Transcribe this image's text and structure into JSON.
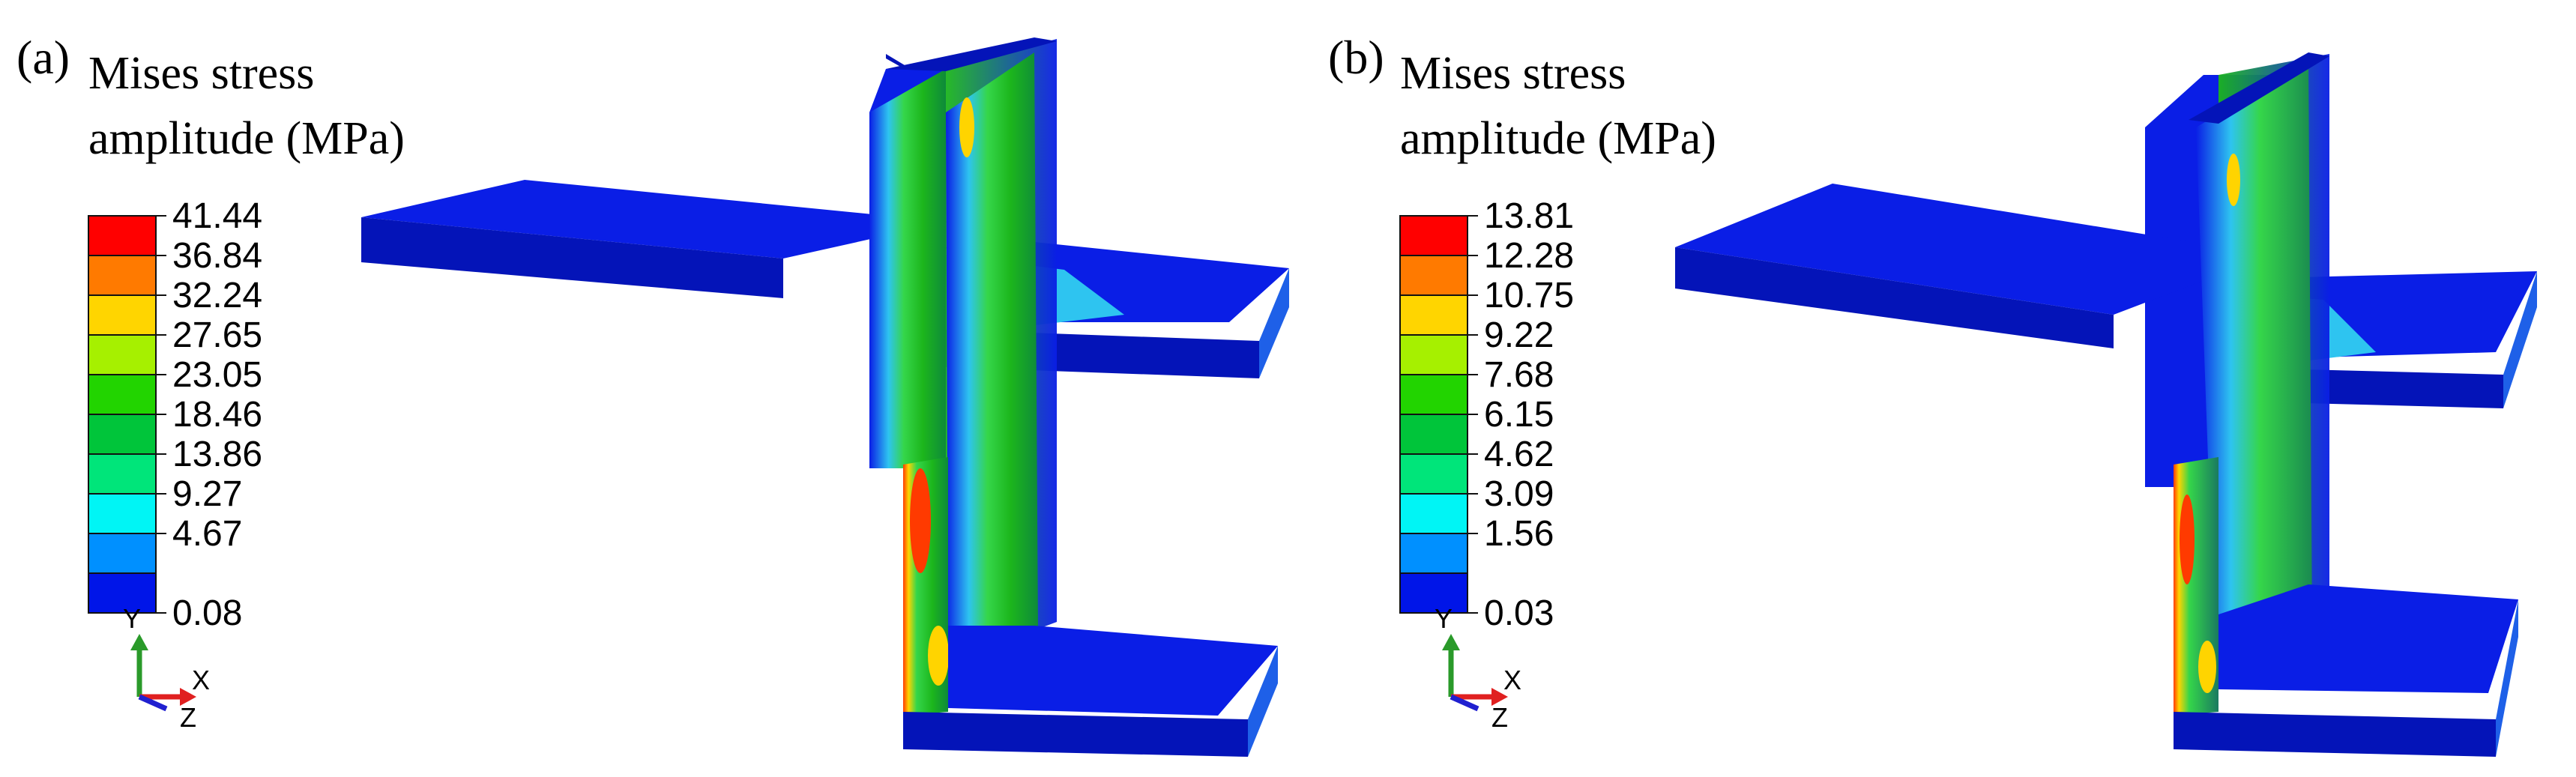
{
  "panels": [
    {
      "id": "a",
      "tag": "(a)",
      "title_line1": "Mises stress",
      "title_line2": "amplitude (MPa)",
      "ticks": [
        "41.44",
        "36.84",
        "32.24",
        "27.65",
        "23.05",
        "18.46",
        "13.86",
        "9.27",
        "4.67",
        "0.08"
      ]
    },
    {
      "id": "b",
      "tag": "(b)",
      "title_line1": "Mises stress",
      "title_line2": "amplitude (MPa)",
      "ticks": [
        "13.81",
        "12.28",
        "10.75",
        "9.22",
        "7.68",
        "6.15",
        "4.62",
        "3.09",
        "1.56",
        "0.03"
      ]
    }
  ],
  "colorbar_colors": [
    "#ff0000",
    "#ff7a00",
    "#ffd500",
    "#a6f000",
    "#22d400",
    "#00c53a",
    "#00e57a",
    "#00f5f5",
    "#0090ff",
    "#0015e8"
  ],
  "axis_triad": {
    "y": "Y",
    "x": "X",
    "z": "Z"
  },
  "colors": {
    "deep_blue": "#0a1ee6",
    "dark_blue": "#0414b8",
    "cyan": "#2ec4f0",
    "green": "#1cb61c",
    "light_green": "#35d64a",
    "yellow": "#ffd400",
    "red": "#ff3a00",
    "axis_green": "#2a9a2a",
    "axis_red": "#e02020",
    "axis_blue": "#2020d0"
  }
}
